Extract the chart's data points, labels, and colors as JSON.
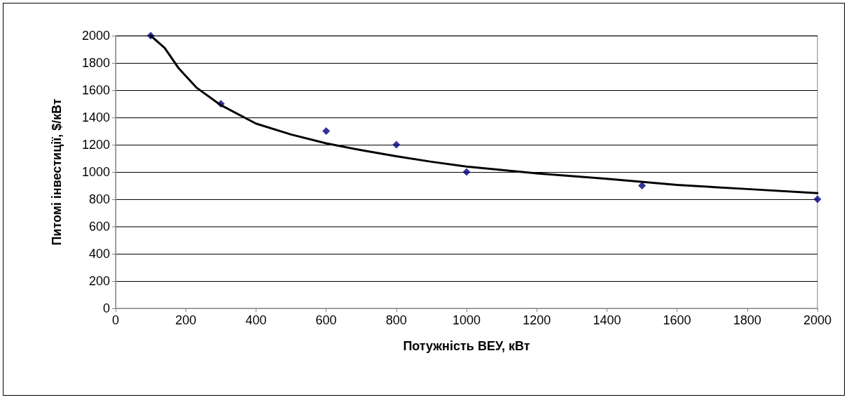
{
  "chart_data": {
    "type": "scatter",
    "xlabel": "Потужність ВЕУ, кВт",
    "ylabel": "Питомі інвестиції, $/кВт",
    "xlim": [
      0,
      2000
    ],
    "xticks": [
      0,
      200,
      400,
      600,
      800,
      1000,
      1200,
      1400,
      1600,
      1800,
      2000
    ],
    "ylim": [
      0,
      2000
    ],
    "yticks": [
      0,
      200,
      400,
      600,
      800,
      1000,
      1200,
      1400,
      1600,
      1800,
      2000
    ],
    "grid": "y",
    "marker": "diamond",
    "series": [
      {
        "type": "scatter",
        "color": "#000080",
        "x": [
          100,
          300,
          600,
          800,
          1000,
          1500,
          2000
        ],
        "values": [
          2000,
          1500,
          1300,
          1200,
          1000,
          900,
          800
        ]
      },
      {
        "type": "line",
        "color": "#000000",
        "marker": "none",
        "line_style": "solid",
        "x": [
          100,
          140,
          180,
          230,
          300,
          400,
          500,
          600,
          700,
          800,
          900,
          1000,
          1200,
          1400,
          1600,
          1800,
          2000
        ],
        "values": [
          2000,
          1910,
          1760,
          1620,
          1490,
          1355,
          1275,
          1210,
          1160,
          1115,
          1075,
          1040,
          990,
          950,
          905,
          875,
          845
        ]
      }
    ]
  }
}
